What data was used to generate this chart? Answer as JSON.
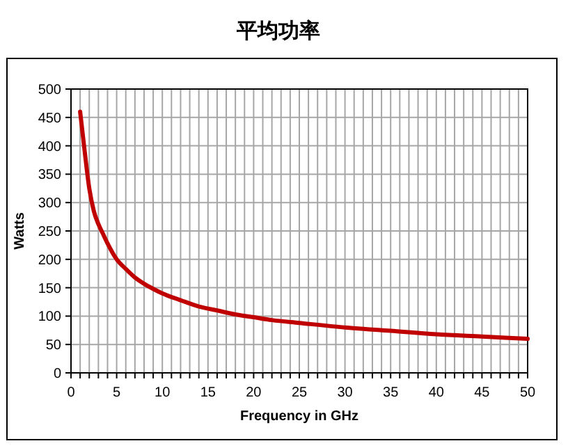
{
  "chart_data": {
    "type": "line",
    "title": "平均功率",
    "xlabel": "Frequency in GHz",
    "ylabel": "Watts",
    "x": [
      1,
      1.5,
      2,
      2.5,
      3,
      3.5,
      4,
      5,
      6,
      7,
      8,
      9,
      10,
      12,
      14,
      16,
      18,
      20,
      22,
      25,
      30,
      35,
      40,
      45,
      50
    ],
    "series": [
      {
        "color": "#c00000",
        "values": [
          460,
          390,
          325,
          285,
          262,
          245,
          228,
          200,
          183,
          168,
          157,
          148,
          140,
          128,
          117,
          110,
          103,
          98,
          93,
          88,
          80,
          74,
          68,
          64,
          60
        ]
      }
    ],
    "xlim": [
      0,
      50
    ],
    "ylim": [
      0,
      500
    ],
    "xticks": [
      0,
      {
        "value": 1,
        "label": null
      },
      {
        "value": 2,
        "label": null
      },
      {
        "value": 3,
        "label": null
      },
      {
        "value": 4,
        "label": null
      },
      5,
      {
        "value": 6,
        "label": null
      },
      {
        "value": 7,
        "label": null
      },
      {
        "value": 8,
        "label": null
      },
      {
        "value": 9,
        "label": null
      },
      10,
      {
        "value": 11,
        "label": null
      },
      {
        "value": 12,
        "label": null
      },
      {
        "value": 13,
        "label": null
      },
      {
        "value": 14,
        "label": null
      },
      15,
      {
        "value": 16,
        "label": null
      },
      {
        "value": 17,
        "label": null
      },
      {
        "value": 18,
        "label": null
      },
      {
        "value": 19,
        "label": null
      },
      20,
      {
        "value": 21,
        "label": null
      },
      {
        "value": 22,
        "label": null
      },
      {
        "value": 23,
        "label": null
      },
      {
        "value": 24,
        "label": null
      },
      25,
      {
        "value": 26,
        "label": null
      },
      {
        "value": 27,
        "label": null
      },
      {
        "value": 28,
        "label": null
      },
      {
        "value": 29,
        "label": null
      },
      30,
      {
        "value": 31,
        "label": null
      },
      {
        "value": 32,
        "label": null
      },
      {
        "value": 33,
        "label": null
      },
      {
        "value": 34,
        "label": null
      },
      35,
      {
        "value": 36,
        "label": null
      },
      {
        "value": 37,
        "label": null
      },
      {
        "value": 38,
        "label": null
      },
      {
        "value": 39,
        "label": null
      },
      40,
      {
        "value": 41,
        "label": null
      },
      {
        "value": 42,
        "label": null
      },
      {
        "value": 43,
        "label": null
      },
      {
        "value": 44,
        "label": null
      },
      45,
      {
        "value": 46,
        "label": null
      },
      {
        "value": 47,
        "label": null
      },
      {
        "value": 48,
        "label": null
      },
      {
        "value": 49,
        "label": null
      },
      50
    ],
    "yticks": [
      0,
      50,
      100,
      150,
      200,
      250,
      300,
      350,
      400,
      450,
      500
    ],
    "grid": true,
    "marker": "none",
    "line_style": "solid"
  }
}
